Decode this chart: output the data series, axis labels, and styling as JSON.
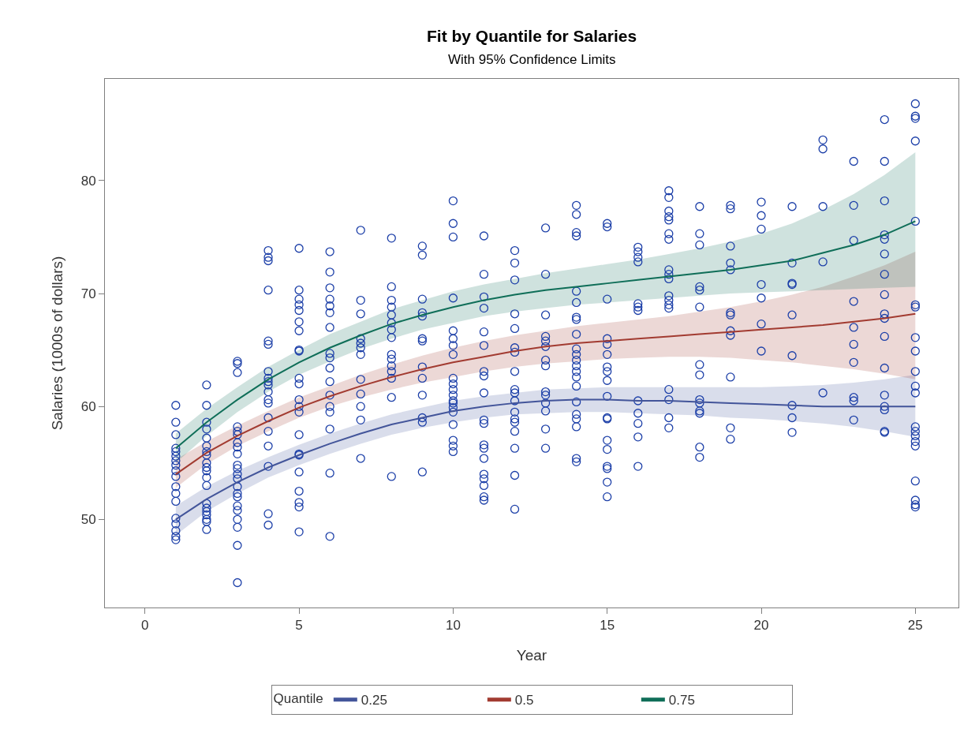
{
  "chart_data": {
    "type": "scatter",
    "title": "Fit by Quantile for Salaries",
    "subtitle": "With 95% Confidence Limits",
    "xlabel": "Year",
    "ylabel": "Salaries (1000s of dollars)",
    "legend_title": "Quantile",
    "xlim": [
      -1.3,
      26.4
    ],
    "ylim": [
      42.2,
      89
    ],
    "xticks": [
      0,
      5,
      10,
      15,
      20,
      25
    ],
    "yticks": [
      50,
      60,
      70,
      80
    ],
    "legend": "bottom",
    "x": [
      1,
      2,
      3,
      4,
      5,
      6,
      7,
      8,
      9,
      10,
      11,
      12,
      13,
      14,
      15,
      16,
      17,
      18,
      19,
      20,
      21,
      22,
      23,
      24,
      25
    ],
    "series": [
      {
        "color": "#1c3fa8",
        "marker": "circle",
        "x": [
          1,
          1,
          1,
          1,
          1,
          1,
          1,
          1,
          1,
          1,
          1,
          1,
          1,
          1,
          1,
          1,
          1,
          1,
          2,
          2,
          2,
          2,
          2,
          2,
          2,
          2,
          2,
          2,
          2,
          2,
          2,
          2,
          2,
          2,
          2,
          2,
          2,
          2,
          3,
          3,
          3,
          3,
          3,
          3,
          3,
          3,
          3,
          3,
          3,
          3,
          3,
          3,
          3,
          3,
          3,
          3,
          3,
          3,
          3,
          3,
          4,
          4,
          4,
          4,
          4,
          4,
          4,
          4,
          4,
          4,
          4,
          4,
          4,
          4,
          4,
          4,
          4,
          4,
          4,
          5,
          5,
          5,
          5,
          5,
          5,
          5,
          5,
          5,
          5,
          5,
          5,
          5,
          5,
          5,
          5,
          5,
          5,
          5,
          5,
          5,
          5,
          6,
          6,
          6,
          6,
          6,
          6,
          6,
          6,
          6,
          6,
          6,
          6,
          6,
          6,
          6,
          6,
          6,
          7,
          7,
          7,
          7,
          7,
          7,
          7,
          7,
          7,
          7,
          7,
          7,
          8,
          8,
          8,
          8,
          8,
          8,
          8,
          8,
          8,
          8,
          8,
          8,
          8,
          8,
          8,
          9,
          9,
          9,
          9,
          9,
          9,
          9,
          9,
          9,
          9,
          9,
          9,
          9,
          10,
          10,
          10,
          10,
          10,
          10,
          10,
          10,
          10,
          10,
          10,
          10,
          10,
          10,
          10,
          10,
          10,
          10,
          10,
          10,
          11,
          11,
          11,
          11,
          11,
          11,
          11,
          11,
          11,
          11,
          11,
          11,
          11,
          11,
          11,
          11,
          11,
          11,
          11,
          12,
          12,
          12,
          12,
          12,
          12,
          12,
          12,
          12,
          12,
          12,
          12,
          12,
          12,
          12,
          12,
          12,
          12,
          13,
          13,
          13,
          13,
          13,
          13,
          13,
          13,
          13,
          13,
          13,
          13,
          13,
          13,
          14,
          14,
          14,
          14,
          14,
          14,
          14,
          14,
          14,
          14,
          14,
          14,
          14,
          14,
          14,
          14,
          14,
          14,
          14,
          14,
          14,
          14,
          15,
          15,
          15,
          15,
          15,
          15,
          15,
          15,
          15,
          15,
          15,
          15,
          15,
          15,
          15,
          15,
          15,
          15,
          16,
          16,
          16,
          16,
          16,
          16,
          16,
          16,
          16,
          16,
          16,
          16,
          17,
          17,
          17,
          17,
          17,
          17,
          17,
          17,
          17,
          17,
          17,
          17,
          17,
          17,
          17,
          17,
          17,
          17,
          18,
          18,
          18,
          18,
          18,
          18,
          18,
          18,
          18,
          18,
          18,
          18,
          18,
          18,
          19,
          19,
          19,
          19,
          19,
          19,
          19,
          19,
          19,
          19,
          19,
          19,
          20,
          20,
          20,
          20,
          20,
          20,
          20,
          21,
          21,
          21,
          21,
          21,
          21,
          21,
          21,
          21,
          22,
          22,
          22,
          22,
          22,
          23,
          23,
          23,
          23,
          23,
          23,
          23,
          23,
          23,
          23,
          24,
          24,
          24,
          24,
          24,
          24,
          24,
          24,
          24,
          24,
          24,
          24,
          24,
          24,
          24,
          24,
          24,
          25,
          25,
          25,
          25,
          25,
          25,
          25,
          25,
          25,
          25,
          25,
          25,
          25,
          25,
          25,
          25,
          25,
          25,
          25,
          25,
          25
        ],
        "values": [
          60.1,
          58.6,
          57.5,
          56.3,
          56.0,
          55.6,
          55.2,
          54.8,
          54.3,
          53.8,
          52.9,
          52.3,
          51.6,
          50.1,
          49.6,
          49.0,
          48.5,
          48.2,
          61.9,
          60.1,
          58.6,
          58.0,
          57.2,
          56.5,
          56.0,
          55.7,
          55.0,
          54.6,
          54.3,
          53.7,
          53.0,
          51.4,
          51.0,
          50.7,
          50.4,
          50.0,
          49.8,
          49.1,
          64.0,
          63.8,
          63.0,
          58.2,
          57.8,
          57.5,
          56.8,
          56.4,
          55.8,
          54.8,
          54.5,
          54.0,
          53.6,
          52.9,
          52.3,
          52.0,
          51.2,
          50.8,
          50.0,
          49.3,
          47.7,
          44.4,
          73.8,
          73.2,
          72.9,
          70.3,
          65.8,
          65.5,
          63.1,
          62.5,
          62.2,
          61.9,
          61.3,
          60.6,
          60.3,
          59.0,
          57.8,
          56.5,
          54.7,
          50.5,
          49.5,
          74.0,
          70.3,
          69.5,
          69.0,
          68.5,
          67.5,
          66.7,
          65.0,
          64.9,
          62.5,
          62.0,
          60.6,
          60.0,
          59.5,
          57.5,
          55.8,
          55.7,
          54.2,
          52.5,
          51.5,
          51.1,
          48.9,
          73.7,
          71.9,
          70.5,
          69.5,
          68.9,
          68.3,
          67.0,
          64.7,
          64.3,
          63.4,
          62.2,
          61.0,
          60.0,
          59.5,
          58.0,
          54.1,
          48.5,
          75.6,
          69.4,
          68.2,
          66.0,
          65.6,
          65.2,
          64.6,
          62.4,
          61.1,
          60.0,
          58.8,
          55.4,
          74.9,
          70.6,
          69.4,
          68.8,
          68.1,
          67.4,
          66.8,
          66.1,
          64.6,
          64.2,
          63.6,
          63.1,
          62.5,
          60.8,
          53.8,
          74.2,
          73.4,
          69.5,
          68.3,
          68.0,
          66.0,
          65.8,
          63.5,
          62.5,
          61.0,
          59.0,
          58.6,
          54.2,
          78.2,
          76.2,
          75.0,
          69.6,
          66.7,
          66.0,
          65.4,
          64.6,
          62.5,
          62.0,
          61.5,
          61.0,
          60.5,
          60.3,
          59.9,
          59.5,
          58.4,
          57.0,
          56.5,
          56.0,
          75.1,
          71.7,
          69.7,
          68.7,
          66.6,
          65.4,
          63.1,
          62.7,
          61.2,
          58.8,
          58.5,
          56.6,
          56.3,
          55.4,
          54.0,
          53.6,
          53.0,
          52.0,
          51.7,
          73.8,
          72.7,
          71.2,
          68.2,
          66.9,
          65.2,
          64.8,
          63.1,
          61.5,
          61.2,
          60.5,
          59.5,
          58.9,
          58.6,
          57.8,
          56.3,
          53.9,
          50.9,
          75.8,
          71.7,
          68.1,
          66.2,
          65.8,
          65.3,
          64.1,
          63.6,
          61.3,
          61.0,
          60.3,
          59.6,
          58.0,
          56.3,
          77.8,
          77.0,
          75.4,
          75.1,
          70.2,
          69.2,
          67.9,
          67.7,
          66.4,
          65.1,
          64.6,
          64.1,
          63.6,
          63.1,
          62.6,
          61.8,
          60.4,
          59.3,
          58.9,
          58.2,
          55.4,
          55.1,
          76.2,
          75.9,
          69.5,
          66.0,
          65.5,
          64.6,
          63.5,
          63.1,
          62.3,
          60.9,
          59.0,
          58.9,
          57.0,
          56.2,
          54.7,
          54.5,
          53.3,
          52.0,
          74.1,
          73.7,
          73.2,
          72.8,
          69.1,
          68.8,
          68.5,
          60.5,
          59.4,
          58.5,
          57.3,
          54.7,
          79.1,
          78.5,
          77.3,
          76.8,
          76.5,
          75.3,
          74.8,
          72.1,
          71.7,
          71.3,
          69.8,
          69.4,
          69.0,
          68.7,
          61.5,
          60.6,
          59.0,
          58.1,
          77.7,
          75.3,
          74.3,
          70.6,
          70.3,
          68.8,
          63.7,
          62.8,
          60.6,
          60.3,
          59.6,
          59.4,
          56.4,
          55.5,
          77.8,
          77.5,
          74.2,
          72.7,
          72.1,
          68.3,
          68.1,
          66.7,
          66.3,
          62.6,
          58.1,
          57.1,
          78.1,
          76.9,
          75.7,
          70.8,
          69.6,
          67.3,
          64.9,
          77.7,
          72.7,
          70.9,
          70.8,
          68.1,
          64.5,
          60.1,
          59.0,
          57.7,
          83.6,
          82.8,
          77.7,
          72.8,
          61.2,
          81.7,
          77.8,
          74.7,
          69.3,
          67.0,
          65.5,
          63.9,
          60.8,
          60.5,
          58.8,
          85.4,
          81.7,
          78.2,
          75.2,
          74.8,
          73.5,
          71.7,
          69.9,
          68.2,
          67.8,
          66.2,
          63.4,
          61.0,
          60.0,
          59.7,
          57.8,
          57.7,
          86.8,
          85.7,
          85.5,
          83.5,
          76.4,
          69.0,
          68.8,
          66.1,
          64.9,
          63.1,
          61.8,
          61.2,
          58.2,
          57.8,
          57.4,
          56.9,
          56.5,
          53.4,
          51.7,
          51.3,
          51.1
        ]
      },
      {
        "type": "line",
        "name": "0.25",
        "color": "#43559a",
        "line_style": "solid",
        "values": [
          50.0,
          51.8,
          53.3,
          54.6,
          55.7,
          56.7,
          57.6,
          58.4,
          59.0,
          59.6,
          60.0,
          60.3,
          60.5,
          60.6,
          60.6,
          60.5,
          60.5,
          60.4,
          60.3,
          60.2,
          60.1,
          60.0,
          60.0,
          60.0,
          60.0
        ],
        "lower": [
          48.6,
          50.7,
          52.3,
          53.7,
          54.8,
          55.8,
          56.7,
          57.5,
          58.1,
          58.6,
          59.0,
          59.3,
          59.4,
          59.5,
          59.5,
          59.4,
          59.3,
          59.2,
          59.0,
          58.9,
          58.7,
          58.5,
          58.2,
          57.8,
          57.3
        ],
        "upper": [
          51.2,
          52.9,
          54.3,
          55.5,
          56.6,
          57.6,
          58.5,
          59.3,
          59.9,
          60.5,
          60.9,
          61.2,
          61.5,
          61.6,
          61.7,
          61.7,
          61.7,
          61.7,
          61.7,
          61.7,
          61.8,
          61.9,
          62.1,
          62.4,
          62.8
        ]
      },
      {
        "type": "line",
        "name": "0.5",
        "color": "#a23b31",
        "line_style": "solid",
        "values": [
          54.0,
          55.9,
          57.4,
          58.7,
          59.9,
          60.9,
          61.8,
          62.6,
          63.3,
          63.9,
          64.4,
          64.9,
          65.3,
          65.6,
          65.8,
          66.0,
          66.2,
          66.4,
          66.6,
          66.8,
          67.0,
          67.2,
          67.5,
          67.8,
          68.2
        ],
        "lower": [
          52.8,
          54.9,
          56.5,
          57.8,
          59.0,
          60.0,
          60.8,
          61.5,
          62.1,
          62.6,
          63.1,
          63.5,
          63.8,
          64.0,
          64.2,
          64.3,
          64.4,
          64.4,
          64.3,
          64.1,
          63.9,
          63.6,
          63.3,
          62.9,
          62.4
        ],
        "upper": [
          55.3,
          56.9,
          58.3,
          59.6,
          60.8,
          61.8,
          62.8,
          63.7,
          64.5,
          65.2,
          65.8,
          66.3,
          66.7,
          67.1,
          67.4,
          67.7,
          68.0,
          68.4,
          68.8,
          69.3,
          69.9,
          70.6,
          71.5,
          72.5,
          73.7
        ]
      },
      {
        "type": "line",
        "name": "0.75",
        "color": "#0f6e58",
        "line_style": "solid",
        "values": [
          56.3,
          58.6,
          60.6,
          62.4,
          63.9,
          65.2,
          66.3,
          67.3,
          68.1,
          68.8,
          69.4,
          69.9,
          70.3,
          70.6,
          70.9,
          71.2,
          71.5,
          71.8,
          72.1,
          72.5,
          72.9,
          73.6,
          74.3,
          75.2,
          76.4
        ],
        "lower": [
          55.0,
          57.4,
          59.5,
          61.3,
          62.8,
          64.0,
          65.1,
          66.0,
          66.8,
          67.4,
          68.0,
          68.4,
          68.7,
          69.0,
          69.2,
          69.4,
          69.6,
          69.8,
          70.0,
          70.1,
          70.2,
          70.3,
          70.4,
          70.5,
          70.6
        ],
        "upper": [
          57.6,
          59.8,
          61.7,
          63.5,
          65.0,
          66.4,
          67.5,
          68.6,
          69.4,
          70.2,
          70.8,
          71.3,
          71.8,
          72.2,
          72.6,
          73.0,
          73.5,
          74.0,
          74.6,
          75.3,
          76.2,
          77.4,
          78.8,
          80.5,
          82.5
        ]
      }
    ]
  }
}
